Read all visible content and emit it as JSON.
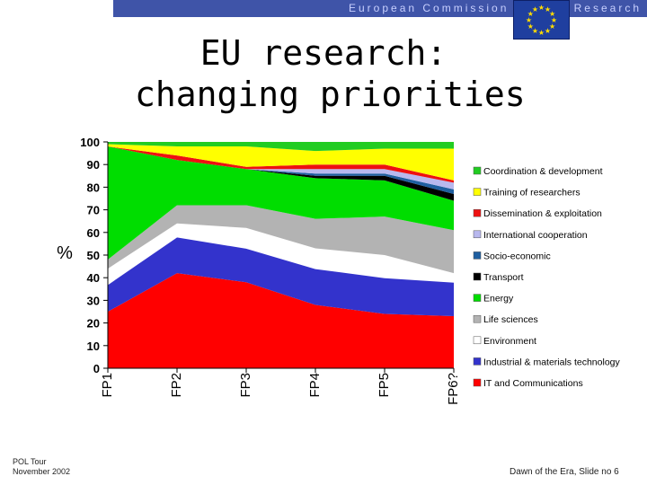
{
  "header": {
    "left_text": "European Commission",
    "right_text": "Research",
    "banner_color": "#3f54a8",
    "flag_icon": "eu-flag-icon"
  },
  "title": {
    "line1": "EU research:",
    "line2": "changing priorities"
  },
  "footer": {
    "left_line1": "POL Tour",
    "left_line2": "November 2002",
    "right": "Dawn of the Era, Slide no 6"
  },
  "chart_data": {
    "type": "area",
    "stacked": true,
    "ylabel": "%",
    "ylim": [
      0,
      100
    ],
    "yticks": [
      0,
      10,
      20,
      30,
      40,
      50,
      60,
      70,
      80,
      90,
      100
    ],
    "categories": [
      "FP1",
      "FP2",
      "FP3",
      "FP4",
      "FP5",
      "FP6?"
    ],
    "legend_position": "right",
    "series": [
      {
        "name": "IT and Communications",
        "color": "#ff0000",
        "values": [
          25,
          42,
          38,
          28,
          24,
          23
        ]
      },
      {
        "name": "Industrial & materials technology",
        "color": "#3333cc",
        "values": [
          12,
          16,
          15,
          16,
          16,
          15
        ]
      },
      {
        "name": "Environment",
        "color": "#ffffff",
        "values": [
          7,
          6,
          9,
          9,
          10,
          4
        ]
      },
      {
        "name": "Life sciences",
        "color": "#b3b3b3",
        "values": [
          4,
          8,
          10,
          13,
          17,
          19
        ]
      },
      {
        "name": "Energy",
        "color": "#00dd00",
        "values": [
          50,
          20,
          16,
          18,
          16,
          13
        ]
      },
      {
        "name": "Transport",
        "color": "#000000",
        "values": [
          0,
          0,
          0,
          1,
          2,
          3
        ]
      },
      {
        "name": "Socio-economic",
        "color": "#1f5fa0",
        "values": [
          0,
          0,
          0,
          1,
          1,
          2
        ]
      },
      {
        "name": "International cooperation",
        "color": "#b8b8ee",
        "values": [
          0,
          0,
          0,
          2,
          2,
          3
        ]
      },
      {
        "name": "Dissemination & exploitation",
        "color": "#ee1111",
        "values": [
          0,
          2,
          1,
          2,
          2,
          1
        ]
      },
      {
        "name": "Training of researchers",
        "color": "#ffff00",
        "values": [
          1,
          4,
          9,
          6,
          7,
          14
        ]
      },
      {
        "name": "Coordination & development",
        "color": "#22cc22",
        "values": [
          1,
          2,
          2,
          4,
          3,
          3
        ]
      }
    ]
  }
}
